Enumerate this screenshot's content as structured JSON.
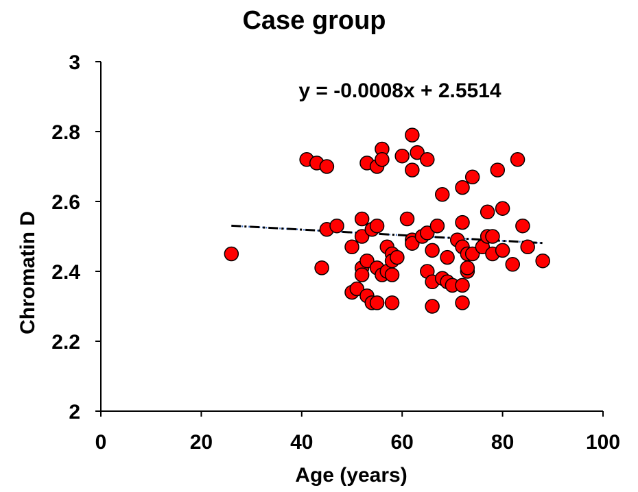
{
  "chart_data": {
    "type": "scatter",
    "title": "Case group",
    "xlabel": "Age (years)",
    "ylabel": "Chromatin D",
    "xlim": [
      0,
      100
    ],
    "ylim": [
      2,
      3
    ],
    "x_ticks": [
      "0",
      "20",
      "40",
      "60",
      "80",
      "100"
    ],
    "y_ticks": [
      "2",
      "2.2",
      "2.4",
      "2.6",
      "2.8",
      "3"
    ],
    "grid": false,
    "legend": "none",
    "marker_color": "#ff0000",
    "marker_edge_color": "#000000",
    "trendline": {
      "type": "linear",
      "slope": -0.0008,
      "intercept": 2.5514,
      "x_range": [
        26,
        88
      ],
      "label": "y = -0.0008x + 2.5514"
    },
    "points": [
      [
        26,
        2.45
      ],
      [
        41,
        2.72
      ],
      [
        43,
        2.71
      ],
      [
        44,
        2.41
      ],
      [
        45,
        2.7
      ],
      [
        45,
        2.52
      ],
      [
        47,
        2.53
      ],
      [
        50,
        2.47
      ],
      [
        50,
        2.34
      ],
      [
        51,
        2.35
      ],
      [
        52,
        2.55
      ],
      [
        52,
        2.5
      ],
      [
        52,
        2.41
      ],
      [
        52,
        2.39
      ],
      [
        53,
        2.71
      ],
      [
        53,
        2.43
      ],
      [
        53,
        2.33
      ],
      [
        54,
        2.31
      ],
      [
        54,
        2.52
      ],
      [
        55,
        2.7
      ],
      [
        55,
        2.53
      ],
      [
        55,
        2.41
      ],
      [
        55,
        2.31
      ],
      [
        56,
        2.75
      ],
      [
        56,
        2.72
      ],
      [
        56,
        2.39
      ],
      [
        57,
        2.47
      ],
      [
        57,
        2.4
      ],
      [
        58,
        2.45
      ],
      [
        58,
        2.43
      ],
      [
        58,
        2.39
      ],
      [
        58,
        2.31
      ],
      [
        59,
        2.44
      ],
      [
        60,
        2.73
      ],
      [
        61,
        2.55
      ],
      [
        62,
        2.79
      ],
      [
        62,
        2.69
      ],
      [
        62,
        2.49
      ],
      [
        62,
        2.48
      ],
      [
        63,
        2.74
      ],
      [
        64,
        2.5
      ],
      [
        65,
        2.72
      ],
      [
        65,
        2.51
      ],
      [
        65,
        2.4
      ],
      [
        66,
        2.46
      ],
      [
        66,
        2.37
      ],
      [
        66,
        2.3
      ],
      [
        67,
        2.53
      ],
      [
        68,
        2.62
      ],
      [
        68,
        2.38
      ],
      [
        69,
        2.44
      ],
      [
        69,
        2.37
      ],
      [
        70,
        2.36
      ],
      [
        71,
        2.49
      ],
      [
        72,
        2.64
      ],
      [
        72,
        2.54
      ],
      [
        72,
        2.47
      ],
      [
        72,
        2.36
      ],
      [
        72,
        2.31
      ],
      [
        73,
        2.45
      ],
      [
        73,
        2.4
      ],
      [
        73,
        2.41
      ],
      [
        74,
        2.67
      ],
      [
        74,
        2.45
      ],
      [
        76,
        2.47
      ],
      [
        77,
        2.57
      ],
      [
        77,
        2.5
      ],
      [
        78,
        2.5
      ],
      [
        78,
        2.45
      ],
      [
        79,
        2.69
      ],
      [
        80,
        2.58
      ],
      [
        80,
        2.46
      ],
      [
        82,
        2.42
      ],
      [
        83,
        2.72
      ],
      [
        84,
        2.53
      ],
      [
        85,
        2.47
      ],
      [
        88,
        2.43
      ]
    ]
  }
}
